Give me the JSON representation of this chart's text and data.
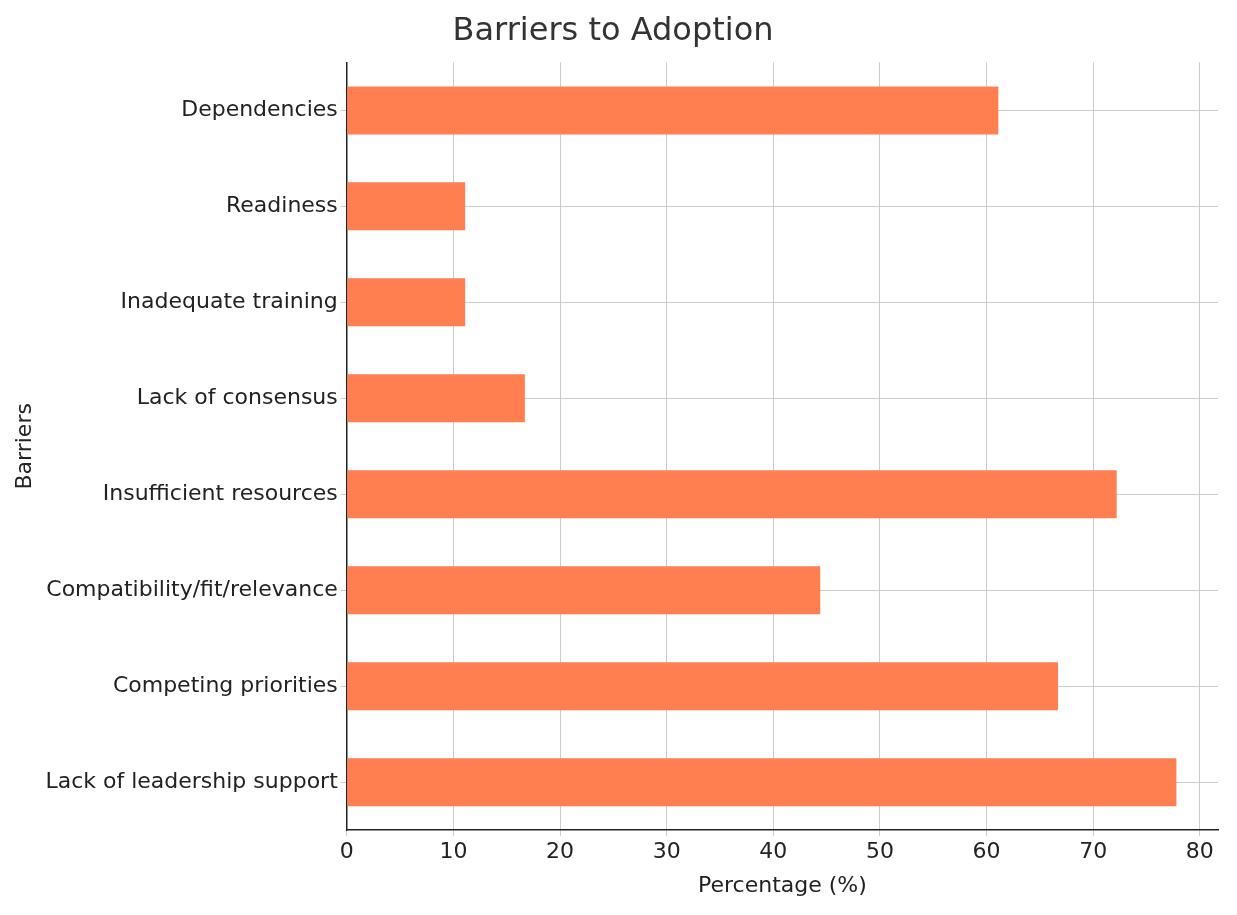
{
  "chart_data": {
    "type": "bar",
    "orientation": "horizontal",
    "title": "Barriers to Adoption",
    "xlabel": "Percentage (%)",
    "ylabel": "Barriers",
    "categories": [
      "Dependencies",
      "Readiness",
      "Inadequate training",
      "Lack of consensus",
      "Insufficient resources",
      "Compatibility/fit/relevance",
      "Competing priorities",
      "Lack of leadership support"
    ],
    "values": [
      61.1,
      11.1,
      11.1,
      16.7,
      72.2,
      44.4,
      66.7,
      77.8
    ],
    "color": "#ff7f50",
    "xlim": [
      0,
      81.7
    ],
    "xticks": [
      0,
      10,
      20,
      30,
      40,
      50,
      60,
      70,
      80
    ],
    "grid": true,
    "legend": false
  }
}
